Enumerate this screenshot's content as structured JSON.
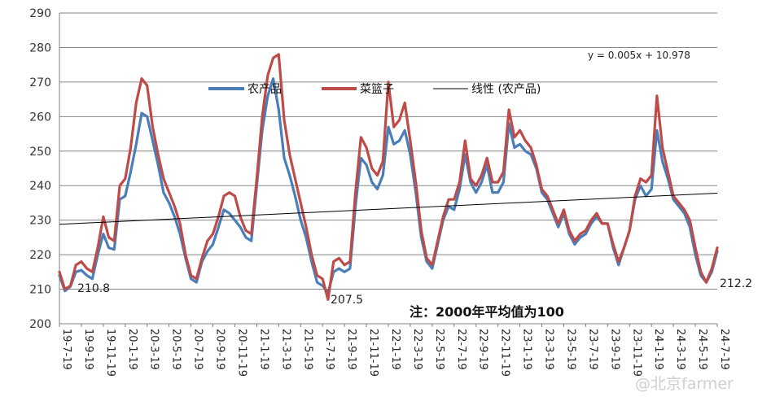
{
  "chart_data": {
    "type": "line",
    "title": "",
    "xlabel": "",
    "ylabel": "",
    "ylim": [
      200,
      290
    ],
    "y_ticks": [
      200,
      210,
      220,
      230,
      240,
      250,
      260,
      270,
      280,
      290
    ],
    "x_ticks": [
      "19-7-19",
      "19-9-19",
      "19-11-19",
      "20-1-19",
      "20-3-19",
      "20-5-19",
      "20-7-19",
      "20-9-19",
      "20-11-19",
      "21-1-19",
      "21-3-19",
      "21-5-19",
      "21-7-19",
      "21-9-19",
      "21-11-19",
      "22-1-19",
      "22-3-19",
      "22-5-19",
      "22-7-19",
      "22-9-19",
      "22-11-19",
      "23-1-19",
      "23-3-19",
      "23-5-19",
      "23-7-19",
      "23-9-19",
      "23-11-19",
      "24-1-19",
      "24-3-19",
      "24-5-19",
      "24-7-19"
    ],
    "grid": true,
    "legend_position": "top-center",
    "colors": {
      "agri": "#4a7ebb",
      "basket": "#be4b48",
      "trend": "#000000"
    },
    "legend": [
      "农产品",
      "菜篮子",
      "线性 (农产品)"
    ],
    "trendline": {
      "label": "线性 (农产品)",
      "equation": "y = 0.005x + 10.978",
      "start": 228.8,
      "end": 237.8
    },
    "series": [
      {
        "name": "农产品",
        "values": [
          214,
          209.5,
          210.8,
          215,
          215.5,
          214,
          213,
          220,
          226,
          222,
          221.5,
          236,
          237,
          244,
          252,
          261,
          260,
          253,
          246,
          238,
          235,
          231,
          226,
          219,
          213,
          212,
          218,
          221,
          223,
          228,
          233,
          232,
          230,
          228,
          225,
          224,
          240,
          256,
          266,
          271,
          262,
          248,
          243,
          237,
          230,
          225,
          218,
          212,
          211,
          209,
          215,
          216,
          215,
          216,
          234,
          248,
          246,
          241,
          239,
          243,
          257,
          252,
          253,
          256,
          249,
          238,
          225,
          218,
          216,
          223,
          230,
          234,
          233,
          239,
          249,
          241,
          238,
          241,
          246,
          238,
          238,
          241,
          258,
          251,
          252,
          250,
          249,
          245,
          238,
          236,
          232,
          228,
          232,
          226,
          223,
          225,
          226,
          229,
          231,
          229,
          229,
          222,
          217,
          222,
          227,
          236,
          240,
          237,
          239,
          256,
          247,
          242,
          236,
          234,
          232,
          228,
          220,
          214,
          212,
          215,
          221
        ]
      },
      {
        "name": "菜篮子",
        "values": [
          215,
          210,
          211,
          217,
          218,
          216,
          215,
          222,
          231,
          225,
          224,
          240,
          242,
          251,
          264,
          271,
          269,
          257,
          249,
          242,
          238,
          234,
          229,
          220,
          214,
          213,
          219,
          224,
          226,
          231,
          237,
          238,
          237,
          231,
          227,
          226,
          242,
          260,
          272,
          277,
          278,
          259,
          249,
          242,
          235,
          228,
          220,
          214,
          213,
          207,
          218,
          219,
          217,
          218,
          238,
          254,
          251,
          245,
          243,
          247,
          270,
          257,
          259,
          264,
          253,
          241,
          227,
          219,
          217,
          224,
          231,
          236,
          236,
          241,
          253,
          242,
          240,
          243,
          248,
          241,
          241,
          244,
          262,
          254,
          256,
          253,
          251,
          246,
          239,
          237,
          233,
          229,
          233,
          227,
          224,
          226,
          227,
          230,
          232,
          229,
          229,
          223,
          218,
          222,
          227,
          237,
          242,
          241,
          243,
          266,
          251,
          244,
          237,
          235,
          233,
          230,
          222,
          215,
          212,
          216,
          222
        ]
      }
    ],
    "annotations": [
      "210.8",
      "207.5",
      "212.2"
    ],
    "note": "注：2000年平均值为100"
  },
  "watermark": "@北京farmer"
}
